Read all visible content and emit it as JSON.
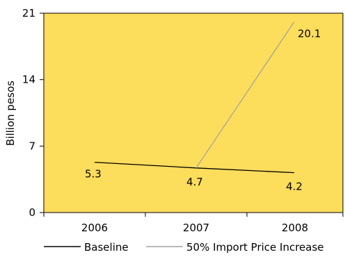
{
  "chart_data": {
    "type": "line",
    "categories": [
      "2006",
      "2007",
      "2008"
    ],
    "ylabel": "Billion pesos",
    "ylim": [
      0,
      21
    ],
    "yticks": [
      0,
      7,
      14,
      21
    ],
    "grid": false,
    "legend_position": "bottom",
    "plot_background": "#FCDD5C",
    "series": [
      {
        "name": "Baseline",
        "color": "#000000",
        "points": [
          {
            "x": "2006",
            "y": 5.3,
            "label": "5.3"
          },
          {
            "x": "2007",
            "y": 4.7,
            "label": "4.7"
          },
          {
            "x": "2008",
            "y": 4.2,
            "label": "4.2"
          }
        ]
      },
      {
        "name": "50% Import Price Increase",
        "color": "#A0A0A0",
        "points": [
          {
            "x": "2007",
            "y": 4.7
          },
          {
            "x": "2008",
            "y": 20.1,
            "label": "20.1"
          }
        ]
      }
    ]
  }
}
